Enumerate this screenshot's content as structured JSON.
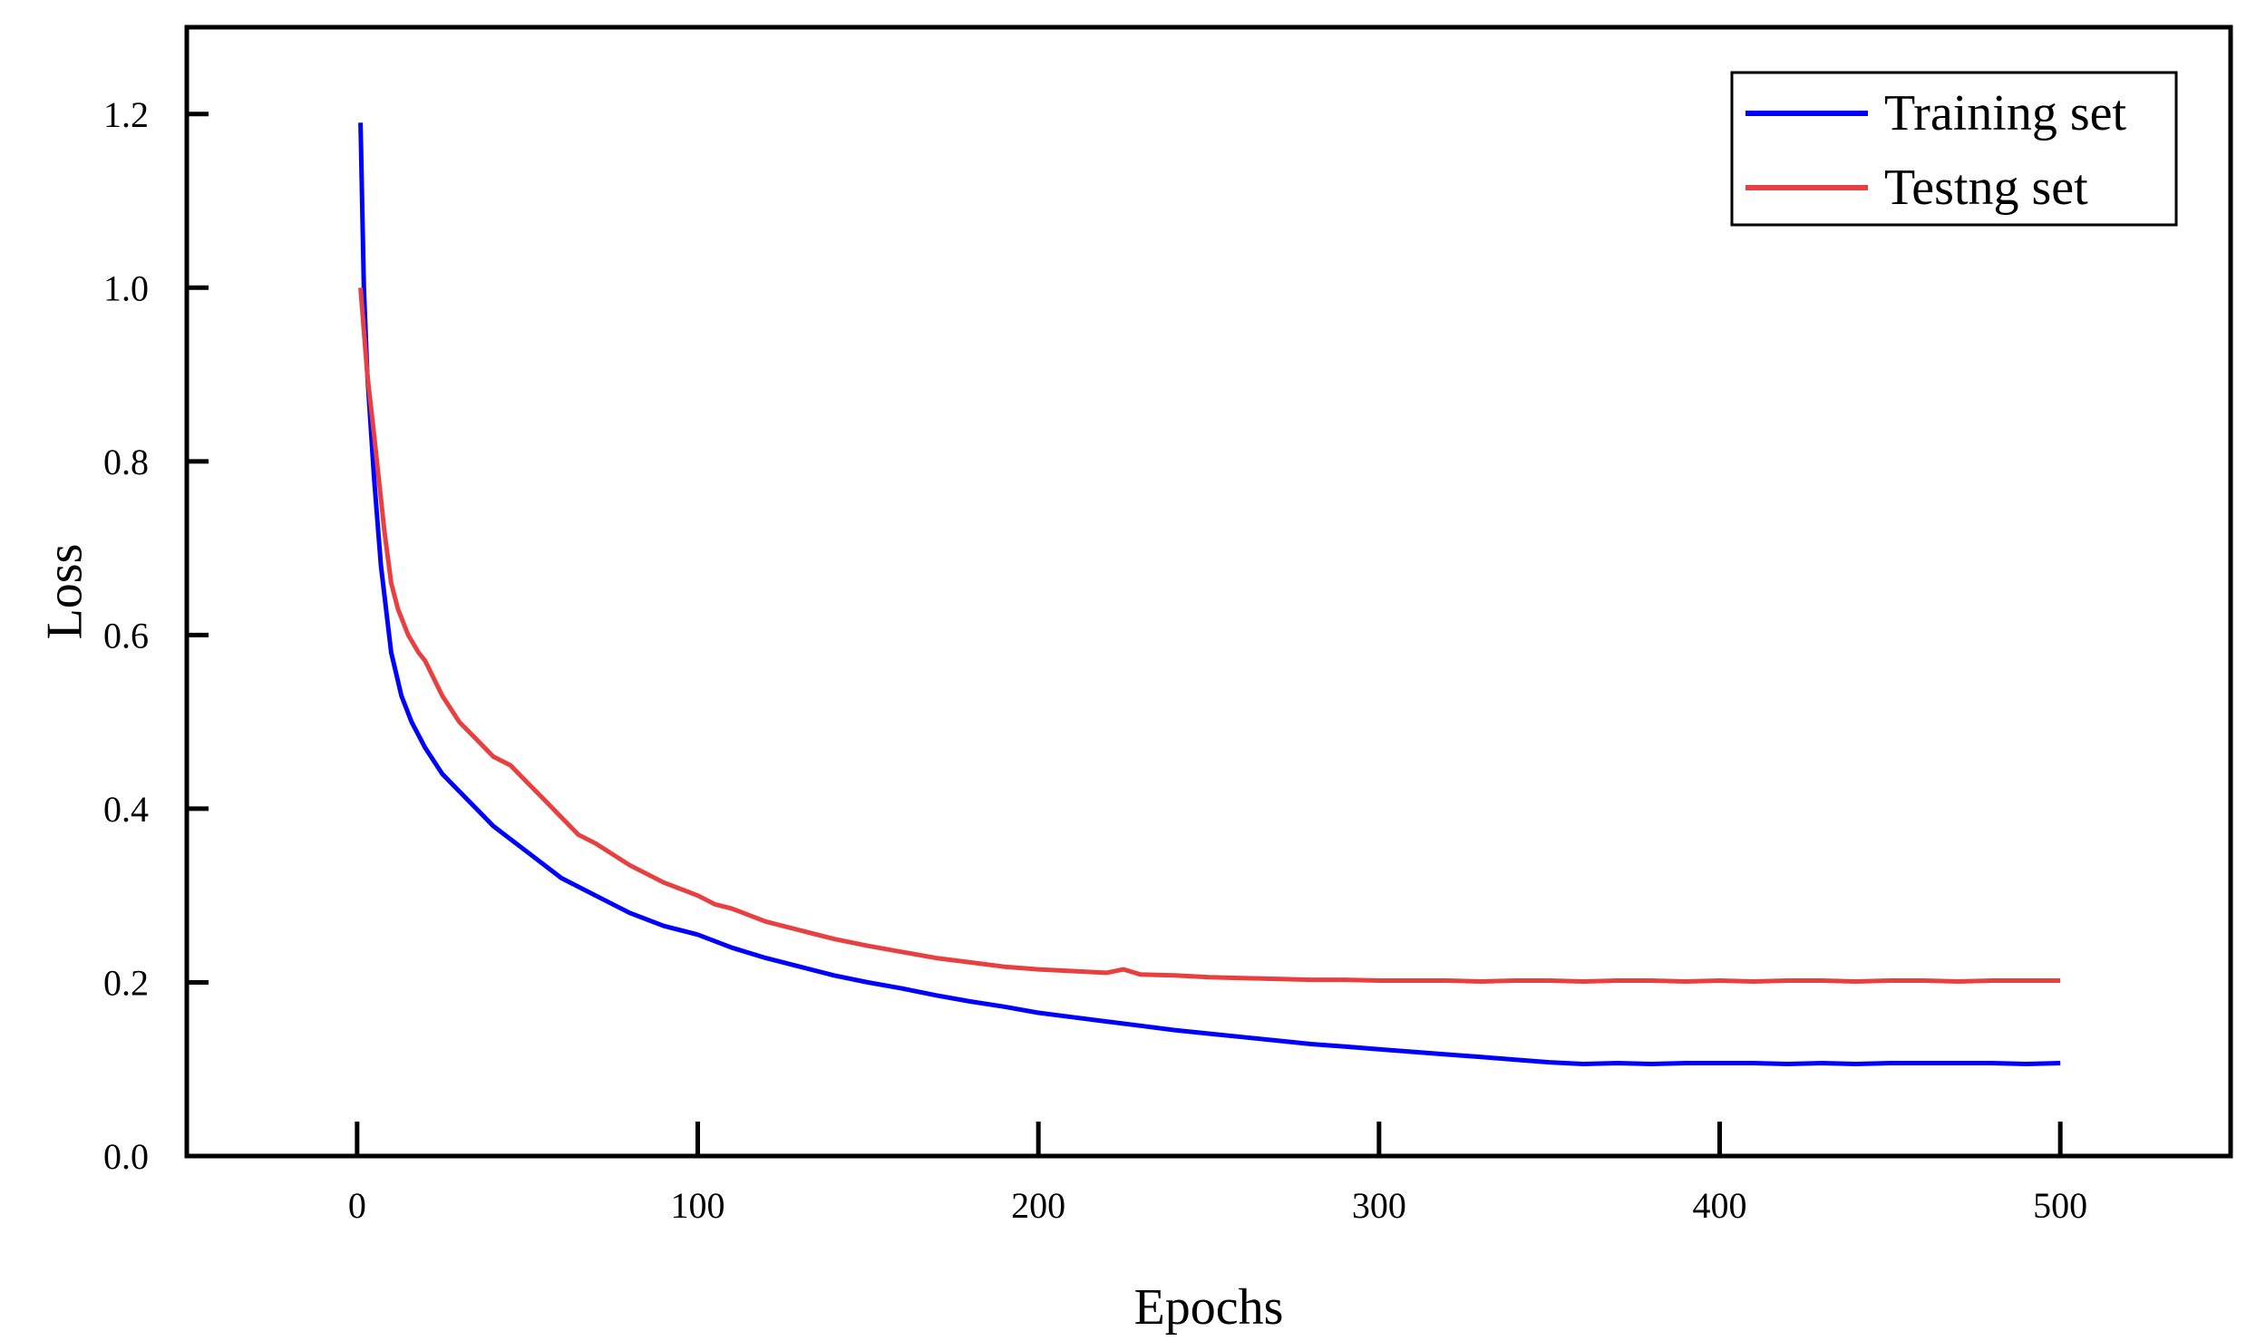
{
  "chart_data": {
    "type": "line",
    "title": "",
    "xlabel": "Epochs",
    "ylabel": "Loss",
    "xlim": [
      -50,
      550
    ],
    "ylim": [
      0,
      1.3
    ],
    "x_ticks": [
      0,
      100,
      200,
      300,
      400,
      500
    ],
    "y_ticks": [
      0.0,
      0.2,
      0.4,
      0.6,
      0.8,
      1.0,
      1.2
    ],
    "x_tick_labels": [
      "0",
      "100",
      "200",
      "300",
      "400",
      "500"
    ],
    "y_tick_labels": [
      "0.0",
      "0.2",
      "0.4",
      "0.6",
      "0.8",
      "1.0",
      "1.2"
    ],
    "grid": false,
    "legend_position": "top-right",
    "series": [
      {
        "name": "Training set",
        "color": "#0000ff",
        "x": [
          1,
          2,
          3,
          5,
          7,
          10,
          13,
          16,
          20,
          25,
          30,
          35,
          40,
          50,
          60,
          70,
          80,
          90,
          100,
          110,
          120,
          130,
          140,
          150,
          160,
          170,
          180,
          190,
          200,
          210,
          220,
          230,
          240,
          250,
          260,
          270,
          280,
          290,
          300,
          310,
          320,
          330,
          340,
          350,
          360,
          370,
          380,
          390,
          400,
          410,
          420,
          430,
          440,
          450,
          460,
          470,
          480,
          490,
          500
        ],
        "values": [
          1.19,
          1.0,
          0.9,
          0.78,
          0.68,
          0.58,
          0.53,
          0.5,
          0.47,
          0.44,
          0.42,
          0.4,
          0.38,
          0.35,
          0.32,
          0.3,
          0.28,
          0.265,
          0.255,
          0.24,
          0.228,
          0.218,
          0.208,
          0.2,
          0.193,
          0.185,
          0.178,
          0.172,
          0.165,
          0.16,
          0.155,
          0.15,
          0.145,
          0.141,
          0.137,
          0.133,
          0.129,
          0.126,
          0.123,
          0.12,
          0.117,
          0.114,
          0.111,
          0.108,
          0.106,
          0.107,
          0.106,
          0.107,
          0.107,
          0.107,
          0.106,
          0.107,
          0.106,
          0.107,
          0.107,
          0.107,
          0.107,
          0.106,
          0.107
        ]
      },
      {
        "name": "Testng set",
        "color": "#e84040",
        "x": [
          1,
          3,
          5,
          8,
          10,
          12,
          15,
          18,
          20,
          25,
          30,
          35,
          40,
          45,
          50,
          55,
          60,
          65,
          70,
          80,
          90,
          100,
          105,
          110,
          120,
          130,
          140,
          150,
          160,
          170,
          180,
          190,
          200,
          210,
          220,
          225,
          230,
          240,
          250,
          260,
          270,
          280,
          290,
          300,
          310,
          320,
          330,
          340,
          350,
          360,
          370,
          380,
          390,
          400,
          410,
          420,
          430,
          440,
          450,
          460,
          470,
          480,
          490,
          500
        ],
        "values": [
          1.0,
          0.9,
          0.83,
          0.72,
          0.66,
          0.63,
          0.6,
          0.58,
          0.57,
          0.53,
          0.5,
          0.48,
          0.46,
          0.45,
          0.43,
          0.41,
          0.39,
          0.37,
          0.36,
          0.335,
          0.315,
          0.3,
          0.29,
          0.285,
          0.27,
          0.26,
          0.25,
          0.242,
          0.235,
          0.228,
          0.223,
          0.218,
          0.215,
          0.213,
          0.211,
          0.215,
          0.209,
          0.208,
          0.206,
          0.205,
          0.204,
          0.203,
          0.203,
          0.202,
          0.202,
          0.202,
          0.201,
          0.202,
          0.202,
          0.201,
          0.202,
          0.202,
          0.201,
          0.202,
          0.201,
          0.202,
          0.202,
          0.201,
          0.202,
          0.202,
          0.201,
          0.202,
          0.202,
          0.202
        ]
      }
    ]
  }
}
